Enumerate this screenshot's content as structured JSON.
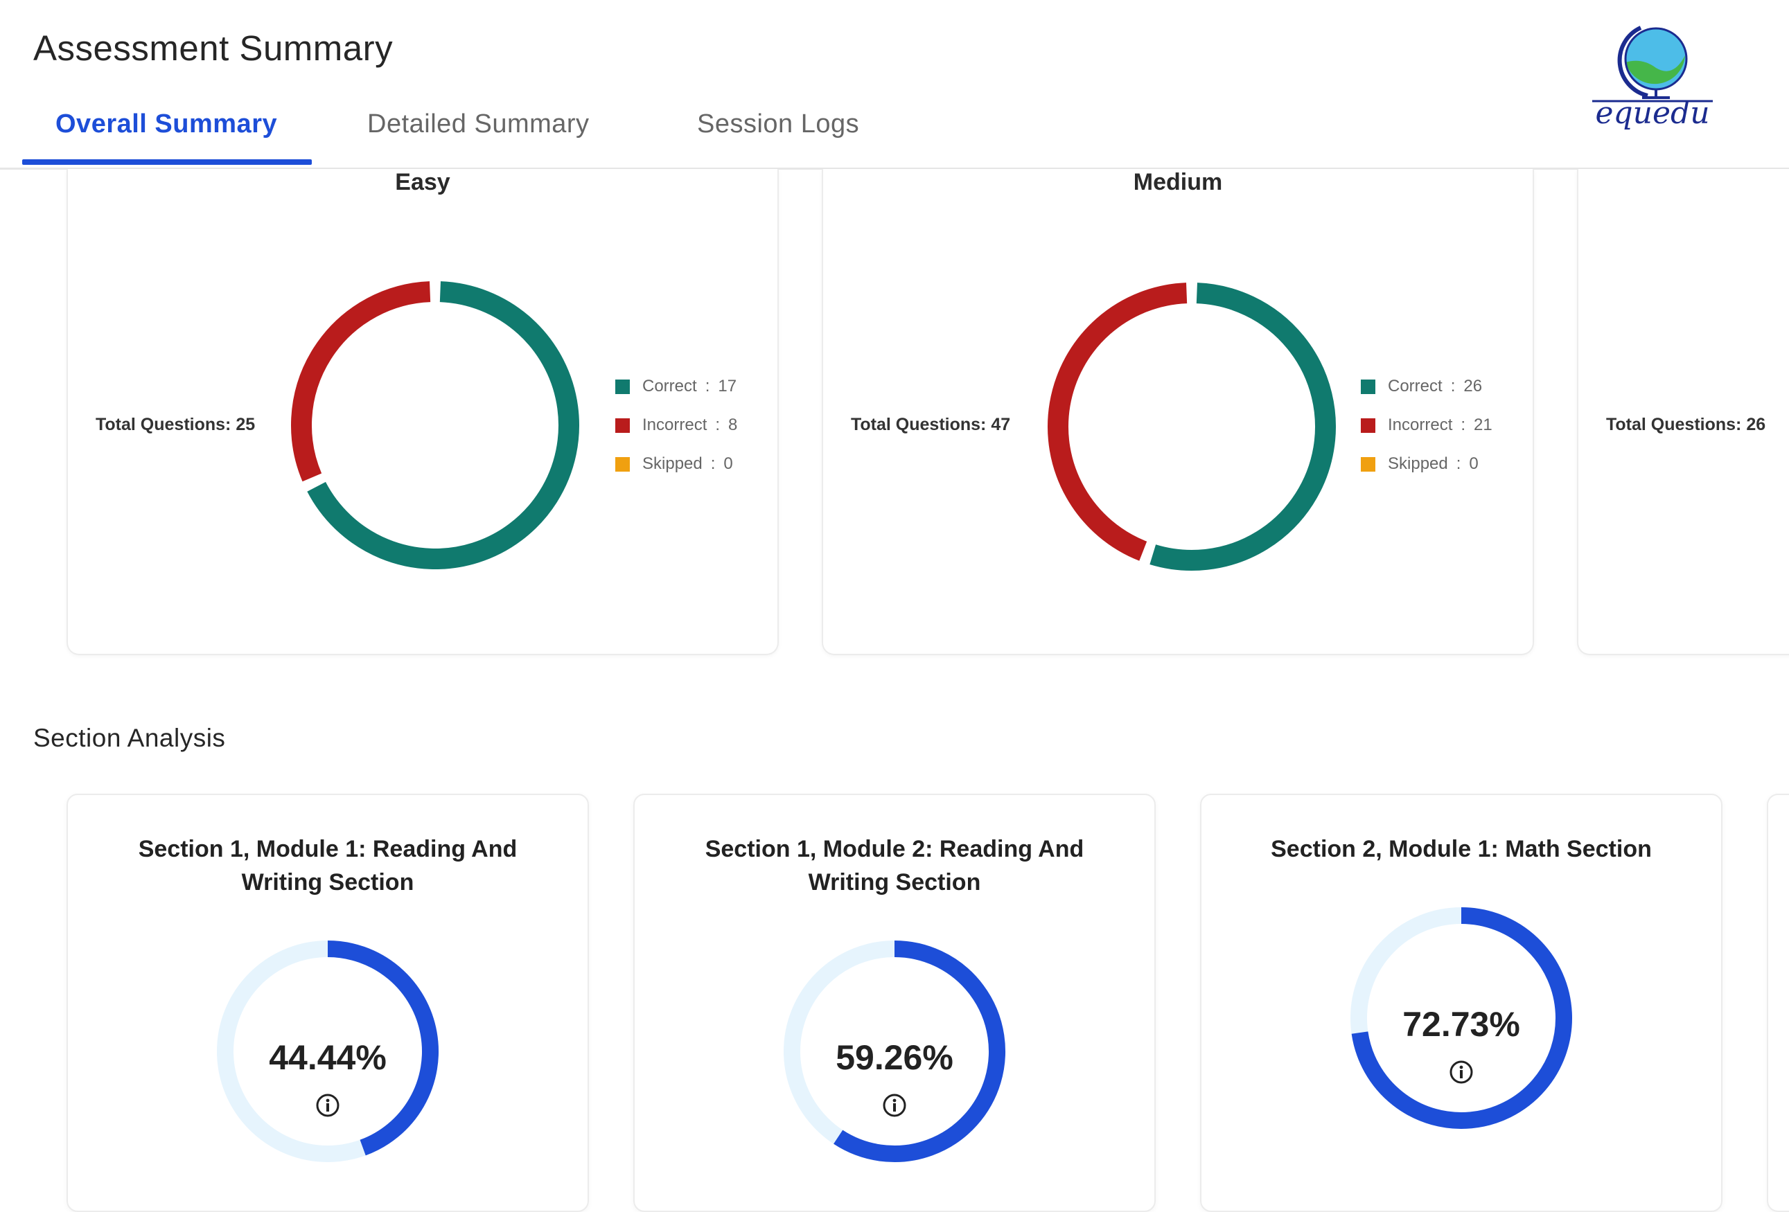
{
  "header": {
    "title": "Assessment Summary",
    "logo_text": "equedu"
  },
  "tabs": [
    {
      "label": "Overall Summary",
      "active": true
    },
    {
      "label": "Detailed Summary",
      "active": false
    },
    {
      "label": "Session Logs",
      "active": false
    }
  ],
  "difficulty": {
    "legend_labels": {
      "correct": "Correct",
      "incorrect": "Incorrect",
      "skipped": "Skipped"
    },
    "cards": [
      {
        "title": "Easy",
        "total_label": "Total Questions: 25",
        "correct": 17,
        "incorrect": 8,
        "skipped": 0
      },
      {
        "title": "Medium",
        "total_label": "Total Questions: 47",
        "correct": 26,
        "incorrect": 21,
        "skipped": 0
      },
      {
        "title": "",
        "total_label": "Total Questions: 26"
      }
    ],
    "colors": {
      "correct": "#107a6e",
      "incorrect": "#b91c1c",
      "skipped": "#f0a010"
    }
  },
  "section_analysis": {
    "heading": "Section Analysis",
    "cards": [
      {
        "title": "Section 1, Module 1: Reading And Writing Section",
        "percent": 44.44,
        "percent_label": "44.44%"
      },
      {
        "title": "Section 1, Module 2: Reading And Writing Section",
        "percent": 59.26,
        "percent_label": "59.26%"
      },
      {
        "title": "Section 2, Module 1: Math Section",
        "percent": 72.73,
        "percent_label": "72.73%"
      }
    ],
    "colors": {
      "progress": "#1d4ed8",
      "track": "#e6f4fd"
    }
  },
  "icons": [
    "globe-logo-icon",
    "info-icon"
  ],
  "chart_data": [
    {
      "type": "pie",
      "title": "Easy",
      "categories": [
        "Correct",
        "Incorrect",
        "Skipped"
      ],
      "values": [
        17,
        8,
        0
      ]
    },
    {
      "type": "pie",
      "title": "Medium",
      "categories": [
        "Correct",
        "Incorrect",
        "Skipped"
      ],
      "values": [
        26,
        21,
        0
      ]
    }
  ]
}
